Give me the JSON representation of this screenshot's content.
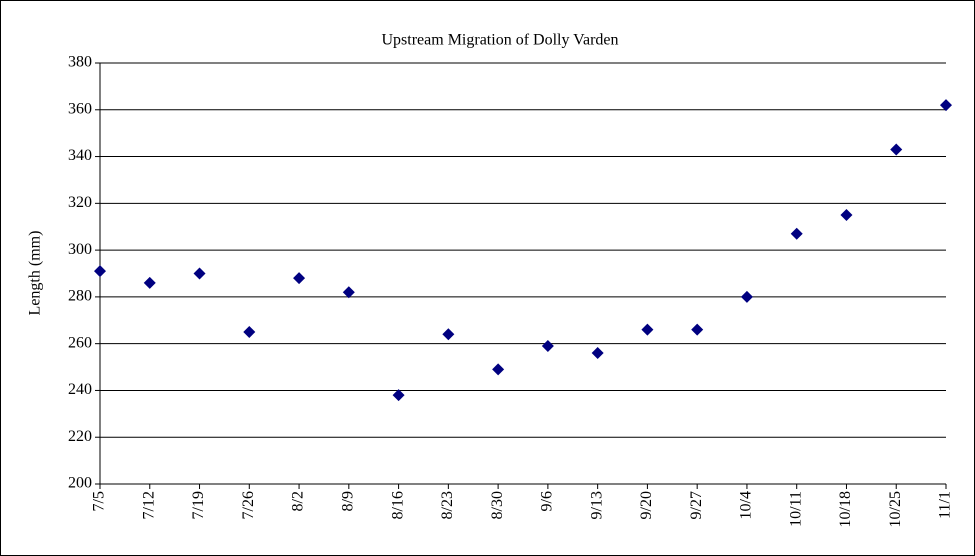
{
  "chart_data": {
    "type": "scatter",
    "title": "Upstream Migration of Dolly Varden",
    "y_label": "Length (mm)",
    "categories": [
      "7/5",
      "7/12",
      "7/19",
      "7/26",
      "8/2",
      "8/9",
      "8/16",
      "8/23",
      "8/30",
      "9/6",
      "9/13",
      "9/20",
      "9/27",
      "10/4",
      "10/11",
      "10/18",
      "10/25",
      "11/1"
    ],
    "values": [
      291,
      286,
      290,
      265,
      288,
      282,
      238,
      264,
      249,
      259,
      256,
      266,
      266,
      280,
      307,
      315,
      343,
      362
    ],
    "color": "#000080",
    "ylim": [
      200,
      380
    ],
    "yticks": [
      200,
      220,
      240,
      260,
      280,
      300,
      320,
      340,
      360,
      380
    ],
    "grid": true
  }
}
